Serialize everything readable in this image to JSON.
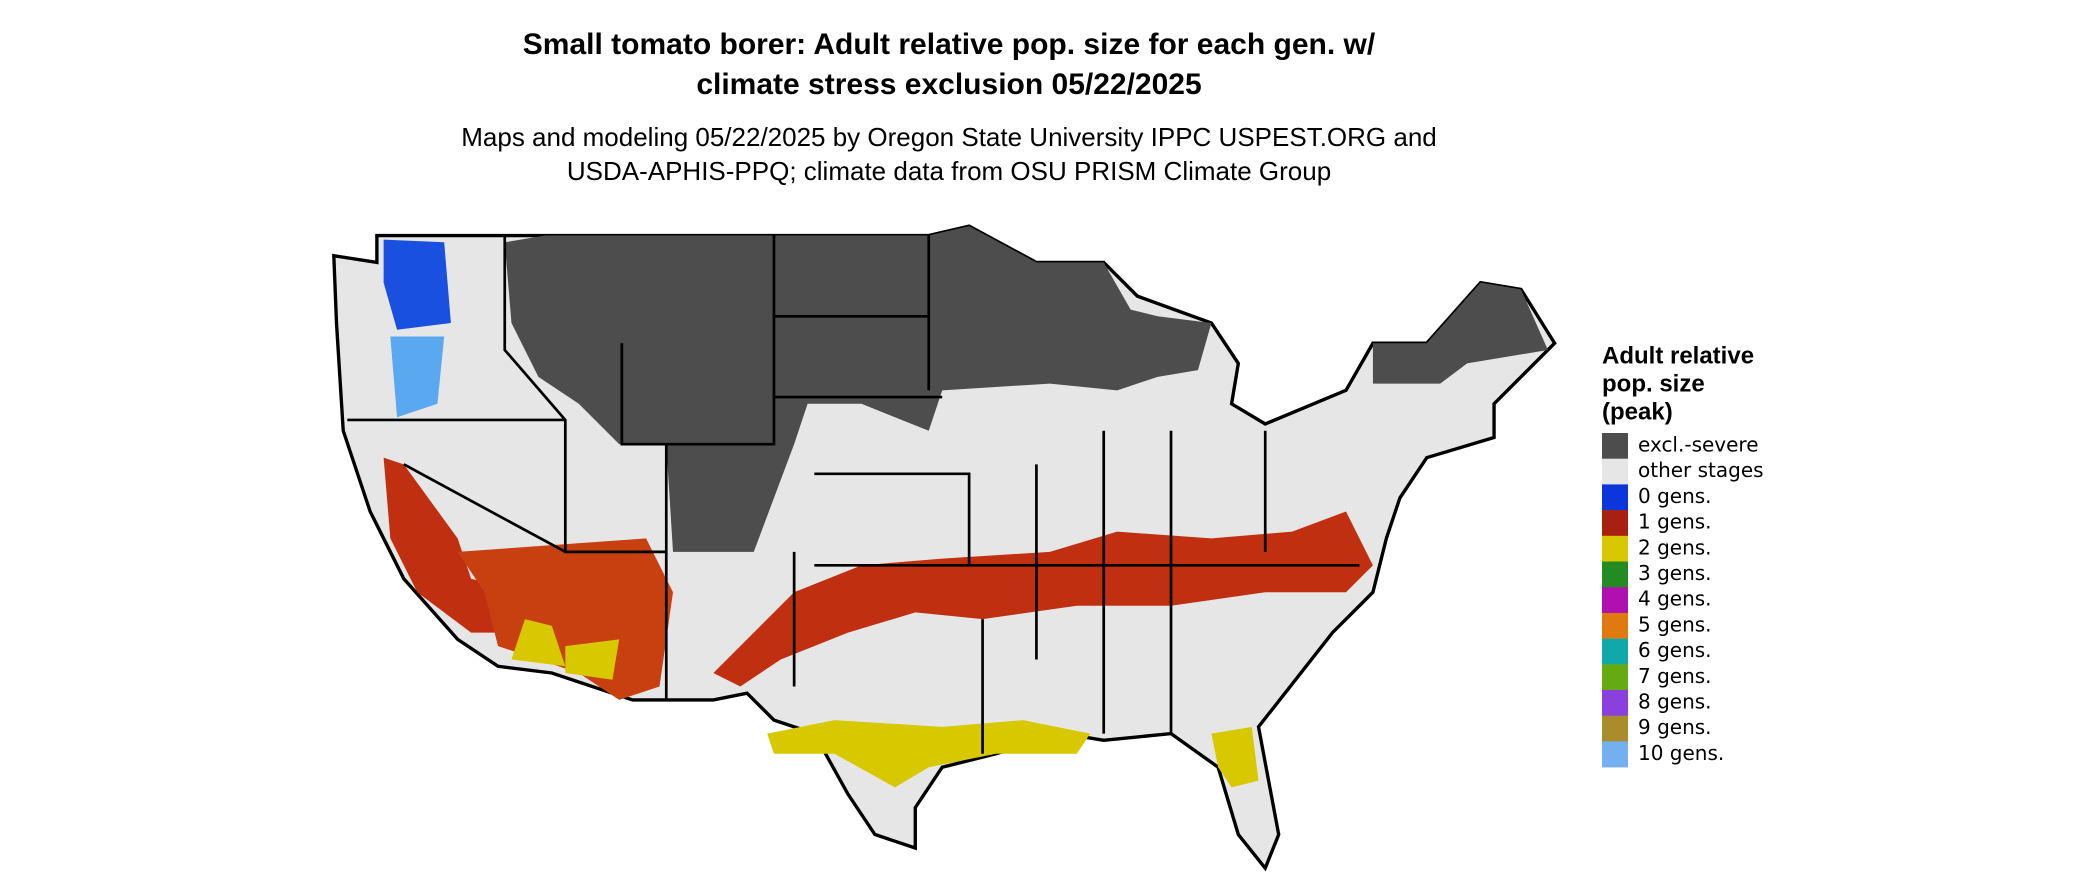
{
  "title": [
    "Small tomato borer: Adult relative pop. size for each gen. w/",
    "climate stress exclusion 05/22/2025"
  ],
  "subtitle": [
    "Maps and modeling 05/22/2025 by Oregon State University IPPC USPEST.ORG and",
    "USDA-APHIS-PPQ; climate data from OSU PRISM Climate Group"
  ],
  "legend": {
    "title": [
      "Adult relative",
      "pop. size",
      "(peak)"
    ],
    "items": [
      {
        "label": "excl.-severe",
        "color": "#4d4d4d"
      },
      {
        "label": "other stages",
        "color": "#e6e6e6"
      },
      {
        "label": "0 gens.",
        "color": "#0a36dc"
      },
      {
        "label": "1 gens.",
        "color": "#a8200f"
      },
      {
        "label": "2 gens.",
        "color": "#d8c800"
      },
      {
        "label": "3 gens.",
        "color": "#228b22"
      },
      {
        "label": "4 gens.",
        "color": "#b010b0"
      },
      {
        "label": "5 gens.",
        "color": "#e07a10"
      },
      {
        "label": "6 gens.",
        "color": "#10a8a8"
      },
      {
        "label": "7 gens.",
        "color": "#66aa11"
      },
      {
        "label": "8 gens.",
        "color": "#8a40dd"
      },
      {
        "label": "9 gens.",
        "color": "#a88d2a"
      },
      {
        "label": "10 gens.",
        "color": "#74b0f0"
      }
    ]
  }
}
